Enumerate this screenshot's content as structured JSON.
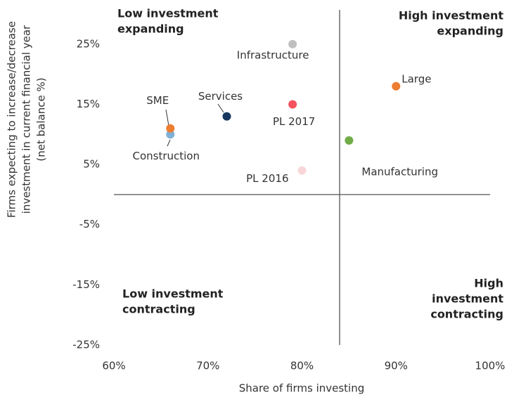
{
  "chart_data": {
    "type": "scatter",
    "x_label": "Share of firms investing",
    "y_label": [
      "Firms expecting to increase/decrease",
      "investment in current financial year",
      "(net balance %)"
    ],
    "xlim": [
      60,
      100
    ],
    "xticks": [
      {
        "value": 60,
        "label": "60%"
      },
      {
        "value": 70,
        "label": "70%"
      },
      {
        "value": 80,
        "label": "80%"
      },
      {
        "value": 90,
        "label": "90%"
      },
      {
        "value": 100,
        "label": "100%"
      }
    ],
    "ylim": [
      -25,
      30
    ],
    "yticks": [
      {
        "value": -25,
        "label": "-25%"
      },
      {
        "value": -15,
        "label": "-15%"
      },
      {
        "value": -5,
        "label": "-5%"
      },
      {
        "value": 5,
        "label": "5%"
      },
      {
        "value": 15,
        "label": "15%"
      },
      {
        "value": 25,
        "label": "25%"
      }
    ],
    "quadrant_x": 84,
    "quadrant_y": 0,
    "series": [
      {
        "name": "Infrastructure",
        "color": "#bfbfbf",
        "x": [
          79
        ],
        "values": [
          25
        ]
      },
      {
        "name": "Large",
        "color": "#ed7d31",
        "x": [
          90
        ],
        "values": [
          18
        ]
      },
      {
        "name": "PL 2017",
        "color": "#f4545f",
        "x": [
          79
        ],
        "values": [
          15
        ]
      },
      {
        "name": "Services",
        "color": "#17375e",
        "x": [
          72
        ],
        "values": [
          13
        ]
      },
      {
        "name": "Construction",
        "color": "#7fb2d8",
        "x": [
          66
        ],
        "values": [
          10
        ]
      },
      {
        "name": "SME",
        "color": "#ed7d31",
        "x": [
          66
        ],
        "values": [
          11
        ]
      },
      {
        "name": "Manufacturing",
        "color": "#70ad47",
        "x": [
          85
        ],
        "values": [
          9
        ]
      },
      {
        "name": "PL 2016",
        "color": "#f8d7d9",
        "x": [
          80
        ],
        "values": [
          4
        ]
      }
    ],
    "annotations": [
      [
        "Low investment",
        "expanding"
      ],
      [
        "High investment",
        "expanding"
      ],
      [
        "Low investment",
        "contracting"
      ],
      [
        "High",
        "investment",
        "contracting"
      ]
    ]
  }
}
